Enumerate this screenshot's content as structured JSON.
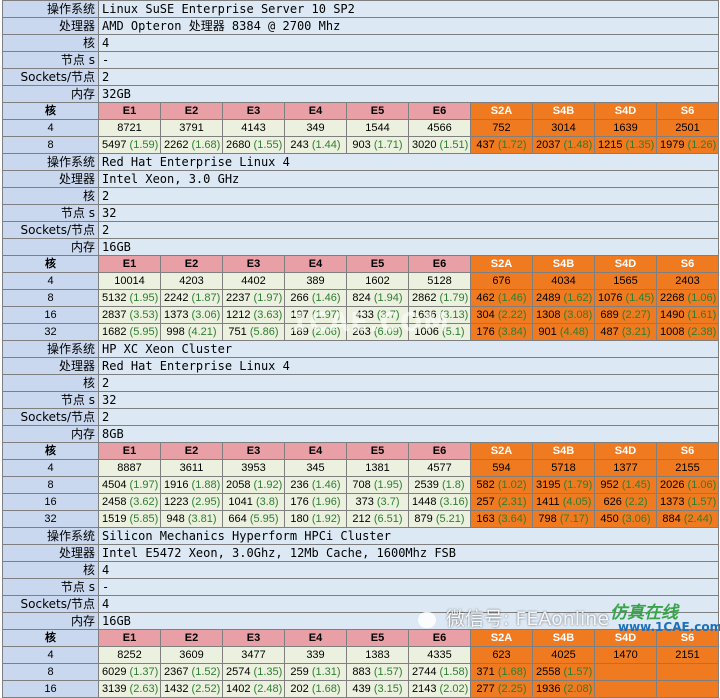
{
  "labels": {
    "os": "操作系统",
    "cpu": "处理器",
    "cores": "核",
    "nodes": "节点 s",
    "sockets": "Sockets/节点",
    "mem": "内存",
    "core_hdr": "核"
  },
  "columns": [
    "E1",
    "E2",
    "E3",
    "E4",
    "E5",
    "E6",
    "S2A",
    "S4B",
    "S4D",
    "S6"
  ],
  "systems": [
    {
      "os": "Linux SuSE Enterprise Server 10 SP2",
      "cpu": "AMD Opteron 处理器 8384 @ 2700 Mhz",
      "cores": "4",
      "nodes": "-",
      "sockets": "2",
      "mem": "32GB",
      "rows": [
        {
          "core": "4",
          "cells": [
            {
              "v": "8721"
            },
            {
              "v": "3791"
            },
            {
              "v": "4143"
            },
            {
              "v": "349"
            },
            {
              "v": "1544"
            },
            {
              "v": "4566"
            },
            {
              "v": "752"
            },
            {
              "v": "3014"
            },
            {
              "v": "1639"
            },
            {
              "v": "2501"
            }
          ]
        },
        {
          "core": "8",
          "cells": [
            {
              "v": "5497",
              "r": "(1.59)"
            },
            {
              "v": "2262",
              "r": "(1.68)"
            },
            {
              "v": "2680",
              "r": "(1.55)"
            },
            {
              "v": "243",
              "r": "(1.44)"
            },
            {
              "v": "903",
              "r": "(1.71)"
            },
            {
              "v": "3020",
              "r": "(1.51)"
            },
            {
              "v": "437",
              "r": "(1.72)"
            },
            {
              "v": "2037",
              "r": "(1.48)"
            },
            {
              "v": "1215",
              "r": "(1.35)"
            },
            {
              "v": "1979",
              "r": "(1.26)"
            }
          ]
        }
      ]
    },
    {
      "os": "Red Hat Enterprise Linux 4",
      "cpu": "Intel Xeon, 3.0 GHz",
      "cores": "2",
      "nodes": "32",
      "sockets": "2",
      "mem": "16GB",
      "rows": [
        {
          "core": "4",
          "cells": [
            {
              "v": "10014"
            },
            {
              "v": "4203"
            },
            {
              "v": "4402"
            },
            {
              "v": "389"
            },
            {
              "v": "1602"
            },
            {
              "v": "5128"
            },
            {
              "v": "676"
            },
            {
              "v": "4034"
            },
            {
              "v": "1565"
            },
            {
              "v": "2403"
            }
          ]
        },
        {
          "core": "8",
          "cells": [
            {
              "v": "5132",
              "r": "(1.95)"
            },
            {
              "v": "2242",
              "r": "(1.87)"
            },
            {
              "v": "2237",
              "r": "(1.97)"
            },
            {
              "v": "266",
              "r": "(1.46)"
            },
            {
              "v": "824",
              "r": "(1.94)"
            },
            {
              "v": "2862",
              "r": "(1.79)"
            },
            {
              "v": "462",
              "r": "(1.46)"
            },
            {
              "v": "2489",
              "r": "(1.62)"
            },
            {
              "v": "1076",
              "r": "(1.45)"
            },
            {
              "v": "2268",
              "r": "(1.06)"
            }
          ]
        },
        {
          "core": "16",
          "cells": [
            {
              "v": "2837",
              "r": "(3.53)"
            },
            {
              "v": "1373",
              "r": "(3.06)"
            },
            {
              "v": "1212",
              "r": "(3.63)"
            },
            {
              "v": "197",
              "r": "(1.97)"
            },
            {
              "v": "433",
              "r": "(3.7)"
            },
            {
              "v": "1636",
              "r": "(3.13)"
            },
            {
              "v": "304",
              "r": "(2.22)"
            },
            {
              "v": "1308",
              "r": "(3.08)"
            },
            {
              "v": "689",
              "r": "(2.27)"
            },
            {
              "v": "1490",
              "r": "(1.61)"
            }
          ]
        },
        {
          "core": "32",
          "cells": [
            {
              "v": "1682",
              "r": "(5.95)"
            },
            {
              "v": "998",
              "r": "(4.21)"
            },
            {
              "v": "751",
              "r": "(5.86)"
            },
            {
              "v": "189",
              "r": "(2.06)"
            },
            {
              "v": "263",
              "r": "(6.09)"
            },
            {
              "v": "1006",
              "r": "(5.1)"
            },
            {
              "v": "176",
              "r": "(3.84)"
            },
            {
              "v": "901",
              "r": "(4.48)"
            },
            {
              "v": "487",
              "r": "(3.21)"
            },
            {
              "v": "1008",
              "r": "(2.38)"
            }
          ]
        }
      ]
    },
    {
      "os": "HP XC Xeon Cluster",
      "cpu": "Red Hat Enterprise Linux 4",
      "cores": "2",
      "nodes": "32",
      "sockets": "2",
      "mem": "8GB",
      "rows": [
        {
          "core": "4",
          "cells": [
            {
              "v": "8887"
            },
            {
              "v": "3611"
            },
            {
              "v": "3953"
            },
            {
              "v": "345"
            },
            {
              "v": "1381"
            },
            {
              "v": "4577"
            },
            {
              "v": "594"
            },
            {
              "v": "5718"
            },
            {
              "v": "1377"
            },
            {
              "v": "2155"
            }
          ]
        },
        {
          "core": "8",
          "cells": [
            {
              "v": "4504",
              "r": "(1.97)"
            },
            {
              "v": "1916",
              "r": "(1.88)"
            },
            {
              "v": "2058",
              "r": "(1.92)"
            },
            {
              "v": "236",
              "r": "(1.46)"
            },
            {
              "v": "708",
              "r": "(1.95)"
            },
            {
              "v": "2539",
              "r": "(1.8)"
            },
            {
              "v": "582",
              "r": "(1.02)"
            },
            {
              "v": "3195",
              "r": "(1.79)"
            },
            {
              "v": "952",
              "r": "(1.45)"
            },
            {
              "v": "2026",
              "r": "(1.06)"
            }
          ]
        },
        {
          "core": "16",
          "cells": [
            {
              "v": "2458",
              "r": "(3.62)"
            },
            {
              "v": "1223",
              "r": "(2.95)"
            },
            {
              "v": "1041",
              "r": "(3.8)"
            },
            {
              "v": "176",
              "r": "(1.96)"
            },
            {
              "v": "373",
              "r": "(3.7)"
            },
            {
              "v": "1448",
              "r": "(3.16)"
            },
            {
              "v": "257",
              "r": "(2.31)"
            },
            {
              "v": "1411",
              "r": "(4.05)"
            },
            {
              "v": "626",
              "r": "(2.2)"
            },
            {
              "v": "1373",
              "r": "(1.57)"
            }
          ]
        },
        {
          "core": "32",
          "cells": [
            {
              "v": "1519",
              "r": "(5.85)"
            },
            {
              "v": "948",
              "r": "(3.81)"
            },
            {
              "v": "664",
              "r": "(5.95)"
            },
            {
              "v": "180",
              "r": "(1.92)"
            },
            {
              "v": "212",
              "r": "(6.51)"
            },
            {
              "v": "879",
              "r": "(5.21)"
            },
            {
              "v": "163",
              "r": "(3.64)"
            },
            {
              "v": "798",
              "r": "(7.17)"
            },
            {
              "v": "450",
              "r": "(3.06)"
            },
            {
              "v": "884",
              "r": "(2.44)"
            }
          ]
        }
      ]
    },
    {
      "os": "Silicon Mechanics Hyperform HPCi Cluster",
      "cpu": "Intel E5472 Xeon, 3.0Ghz, 12Mb Cache, 1600Mhz FSB",
      "cores": "4",
      "nodes": "-",
      "sockets": "4",
      "mem": "16GB",
      "rows": [
        {
          "core": "4",
          "cells": [
            {
              "v": "8252"
            },
            {
              "v": "3609"
            },
            {
              "v": "3477"
            },
            {
              "v": "339"
            },
            {
              "v": "1383"
            },
            {
              "v": "4335"
            },
            {
              "v": "623"
            },
            {
              "v": "4025"
            },
            {
              "v": "1470"
            },
            {
              "v": "2151"
            }
          ]
        },
        {
          "core": "8",
          "cells": [
            {
              "v": "6029",
              "r": "(1.37)"
            },
            {
              "v": "2367",
              "r": "(1.52)"
            },
            {
              "v": "2574",
              "r": "(1.35)"
            },
            {
              "v": "259",
              "r": "(1.31)"
            },
            {
              "v": "883",
              "r": "(1.57)"
            },
            {
              "v": "2744",
              "r": "(1.58)"
            },
            {
              "v": "371",
              "r": "(1.68)"
            },
            {
              "v": "2558",
              "r": "(1.57)"
            },
            {
              "v": "",
              "r": ""
            },
            {
              "v": "",
              "r": ""
            }
          ]
        },
        {
          "core": "16",
          "cells": [
            {
              "v": "3139",
              "r": "(2.63)"
            },
            {
              "v": "1432",
              "r": "(2.52)"
            },
            {
              "v": "1402",
              "r": "(2.48)"
            },
            {
              "v": "202",
              "r": "(1.68)"
            },
            {
              "v": "439",
              "r": "(3.15)"
            },
            {
              "v": "2143",
              "r": "(2.02)"
            },
            {
              "v": "277",
              "r": "(2.25)"
            },
            {
              "v": "1936",
              "r": "(2.08)"
            },
            {
              "v": "",
              "r": ""
            },
            {
              "v": "",
              "r": ""
            }
          ]
        }
      ]
    }
  ],
  "watermarks": {
    "center": "1CAE.COM",
    "wechat": "微信号: FEAonline",
    "brand": "仿真在线",
    "site": "www.1CAE.com"
  },
  "colors": {
    "label_bg": "#c9d8ee",
    "info_bg": "#dce9f5",
    "e_header": "#e8a0a6",
    "s_header": "#f07a20",
    "e_value": "#ebf1de",
    "ratio": "#2e7d32"
  }
}
